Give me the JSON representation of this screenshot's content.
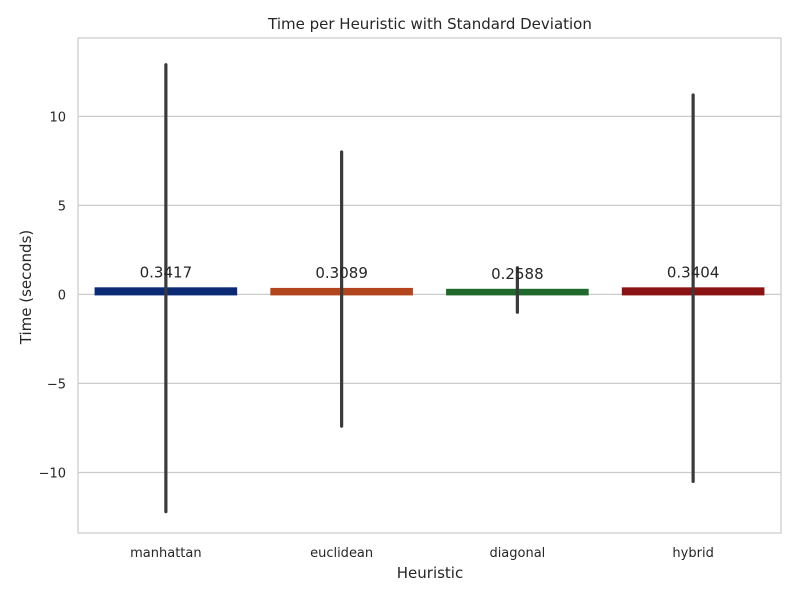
{
  "chart_data": {
    "type": "bar",
    "title": "Time per Heuristic with Standard Deviation",
    "xlabel": "Heuristic",
    "ylabel": "Time (seconds)",
    "categories": [
      "manhattan",
      "euclidean",
      "diagonal",
      "hybrid"
    ],
    "values": [
      0.3417,
      0.3089,
      0.2588,
      0.3404
    ],
    "value_labels": [
      "0.3417",
      "0.3089",
      "0.2588",
      "0.3404"
    ],
    "error_low": [
      -12.2,
      -7.4,
      -1.0,
      -10.5
    ],
    "error_high": [
      12.9,
      8.0,
      1.5,
      11.2
    ],
    "ylim": [
      -13.4,
      14.4
    ],
    "yticks": [
      -10,
      -5,
      0,
      5,
      10
    ],
    "ytick_labels": [
      "−10",
      "−5",
      "0",
      "5",
      "10"
    ],
    "grid": "horizontal",
    "colors": [
      "#0b2a75",
      "#b2451c",
      "#1f6a2a",
      "#8a1313"
    ],
    "error_bar_color": "#3a3a3a"
  }
}
